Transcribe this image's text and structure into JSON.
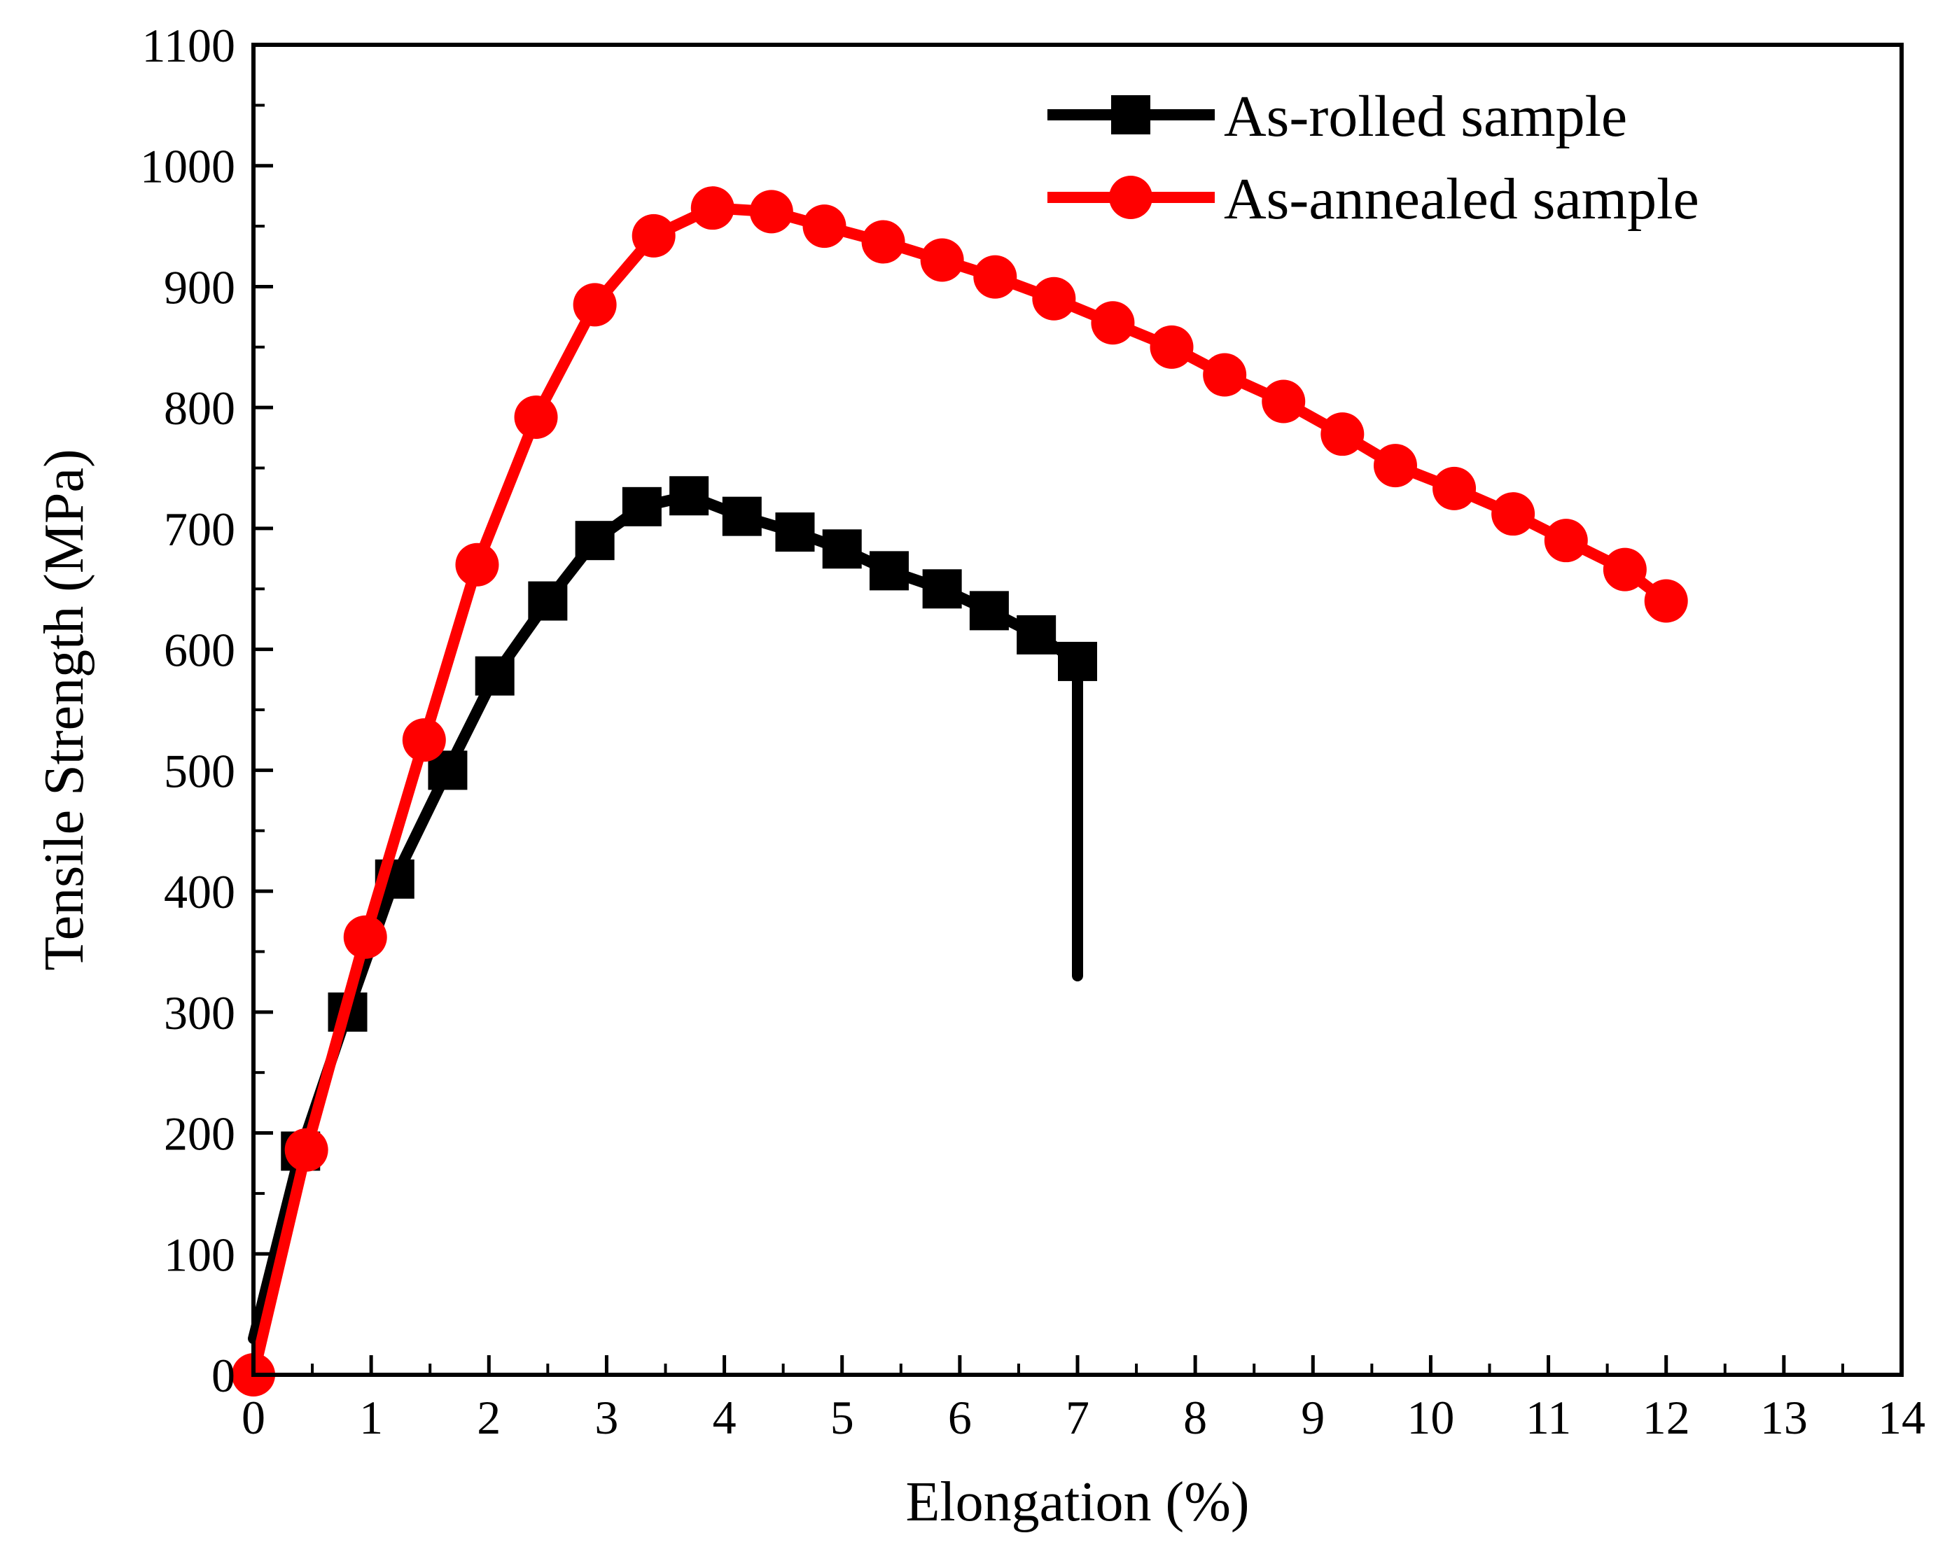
{
  "chart_data": {
    "type": "line",
    "title": "",
    "xlabel": "Elongation (%)",
    "ylabel": "Tensile Strength (MPa)",
    "xlim": [
      0,
      14
    ],
    "ylim": [
      0,
      1100
    ],
    "xticks": [
      "0",
      "1",
      "2",
      "3",
      "4",
      "5",
      "6",
      "7",
      "8",
      "9",
      "10",
      "11",
      "12",
      "13",
      "14"
    ],
    "yticks": [
      "0",
      "100",
      "200",
      "300",
      "400",
      "500",
      "600",
      "700",
      "800",
      "900",
      "1000",
      "1100"
    ],
    "grid": false,
    "legend_position": "top-right",
    "series": [
      {
        "name": "As-rolled sample",
        "color": "#000000",
        "marker": "square",
        "x": [
          0,
          0.4,
          0.8,
          1.2,
          1.65,
          2.05,
          2.5,
          2.9,
          3.3,
          3.7,
          4.15,
          4.6,
          5.0,
          5.4,
          5.85,
          6.25,
          6.65,
          7.0,
          7.0
        ],
        "y": [
          30,
          185,
          300,
          410,
          500,
          578,
          640,
          690,
          718,
          727,
          710,
          697,
          683,
          665,
          650,
          632,
          612,
          590,
          330
        ],
        "marker_indices": [
          1,
          2,
          3,
          4,
          5,
          6,
          7,
          8,
          9,
          10,
          11,
          12,
          13,
          14,
          15,
          16,
          17
        ]
      },
      {
        "name": "As-annealed sample",
        "color": "#ff0000",
        "marker": "circle",
        "x": [
          0,
          0.45,
          0.95,
          1.45,
          1.9,
          2.4,
          2.9,
          3.4,
          3.9,
          4.4,
          4.85,
          5.35,
          5.85,
          6.3,
          6.8,
          7.3,
          7.8,
          8.25,
          8.75,
          9.25,
          9.7,
          10.2,
          10.7,
          11.15,
          11.65,
          12.0
        ],
        "y": [
          0,
          186,
          362,
          525,
          670,
          792,
          885,
          942,
          965,
          962,
          950,
          937,
          922,
          908,
          890,
          870,
          850,
          827,
          805,
          778,
          752,
          733,
          712,
          690,
          666,
          640
        ],
        "marker_indices": [
          0,
          1,
          2,
          3,
          4,
          5,
          6,
          7,
          8,
          9,
          10,
          11,
          12,
          13,
          14,
          15,
          16,
          17,
          18,
          19,
          20,
          21,
          22,
          23,
          24,
          25
        ]
      }
    ]
  }
}
